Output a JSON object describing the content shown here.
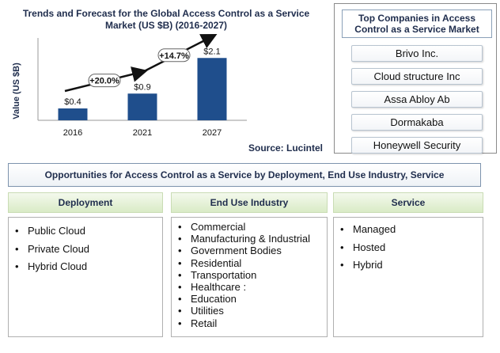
{
  "chart_data": {
    "type": "bar",
    "title": "Trends and Forecast for the Global Access Control as a Service Market (US $B) (2016-2027)",
    "title_lines": [
      "Trends and Forecast for the Global Access  Control as a Service",
      "Market  (US $B) (2016-2027)"
    ],
    "categories": [
      "2016",
      "2021",
      "2027"
    ],
    "values": [
      0.4,
      0.9,
      2.1
    ],
    "value_labels": [
      "$0.4",
      "$0.9",
      "$2.1"
    ],
    "ylabel": "Value (US $B)",
    "xlabel": "",
    "ylim": [
      0,
      2.4
    ],
    "bar_color": "#1f4e8c",
    "grid": false,
    "growth_annotations": [
      {
        "from": "2016",
        "to": "2021",
        "label": "+20.0%"
      },
      {
        "from": "2021",
        "to": "2027",
        "label": "+14.7%"
      }
    ],
    "source": "Source: Lucintel"
  },
  "top_companies": {
    "header": "Top Companies in Access Control as a Service Market",
    "items": [
      "Brivo Inc.",
      "Cloud structure Inc",
      "Assa Abloy Ab",
      "Dormakaba",
      "Honeywell Security"
    ]
  },
  "opportunities": {
    "banner": "Opportunities for Access Control as a Service by Deployment, End Use Industry, Service",
    "columns": [
      {
        "header": "Deployment",
        "items": [
          "Public Cloud",
          "Private Cloud",
          "Hybrid Cloud"
        ]
      },
      {
        "header": "End Use Industry",
        "items": [
          "Commercial",
          "Manufacturing & Industrial",
          "Government Bodies",
          "Residential",
          "Transportation",
          "Healthcare :",
          "Education",
          "Utilities",
          "Retail"
        ]
      },
      {
        "header": "Service",
        "items": [
          "Managed",
          "Hosted",
          "Hybrid"
        ]
      }
    ]
  },
  "colors": {
    "title_text": "#1f2d4d",
    "column_header_bg": "#d9ebc6",
    "bar": "#1f4e8c"
  }
}
